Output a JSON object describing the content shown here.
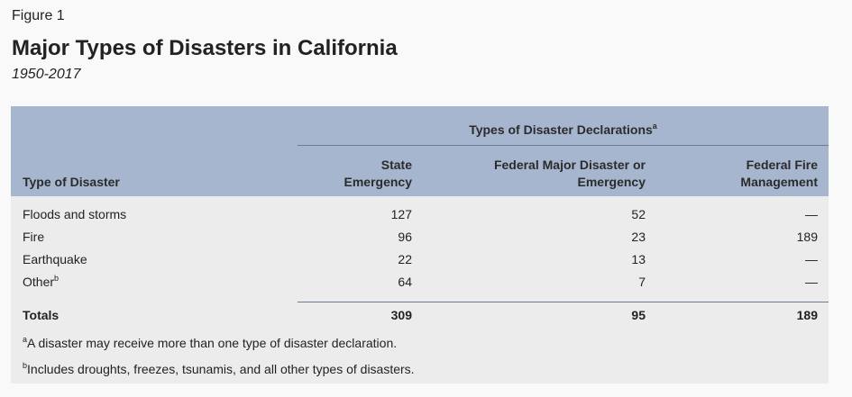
{
  "figure": {
    "label": "Figure 1",
    "title": "Major Types of Disasters in California",
    "subtitle": "1950-2017"
  },
  "table": {
    "group_header": "Types of Disaster Declarations",
    "group_header_note": "a",
    "columns": {
      "type": "Type of Disaster",
      "state_line1": "State",
      "state_line2": "Emergency",
      "federal_line1": "Federal Major Disaster or",
      "federal_line2": "Emergency",
      "fire_line1": "Federal Fire",
      "fire_line2": "Management"
    },
    "rows": [
      {
        "type": "Floods and storms",
        "note": "",
        "state": "127",
        "federal": "52",
        "fire": "—"
      },
      {
        "type": "Fire",
        "note": "",
        "state": "96",
        "federal": "23",
        "fire": "189"
      },
      {
        "type": "Earthquake",
        "note": "",
        "state": "22",
        "federal": "13",
        "fire": "—"
      },
      {
        "type": "Other",
        "note": "b",
        "state": "64",
        "federal": "7",
        "fire": "—"
      }
    ],
    "totals": {
      "label": "Totals",
      "state": "309",
      "federal": "95",
      "fire": "189"
    }
  },
  "notes": [
    {
      "mark": "a",
      "text": "A disaster may receive more than one type of disaster declaration."
    },
    {
      "mark": "b",
      "text": "Includes droughts, freezes, tsunamis, and all other types of disasters."
    }
  ],
  "colors": {
    "header_background": "#a7b6cf",
    "panel_background": "#ececec",
    "page_background": "#f9f9f9"
  }
}
